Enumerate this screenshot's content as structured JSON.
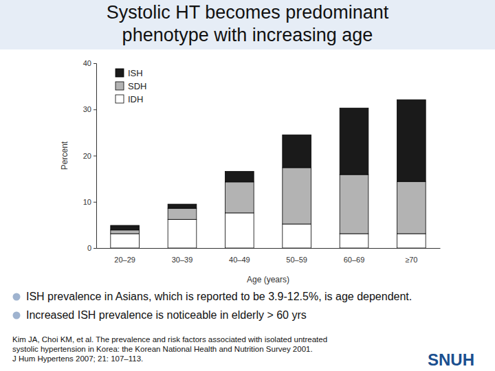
{
  "chart_data": {
    "type": "bar",
    "title": "Systolic HT becomes predominant phenotype with increasing age",
    "x_label": "Age (years)",
    "y_label": "Percent",
    "categories": [
      "20–29",
      "30–39",
      "40–49",
      "50–59",
      "60–69",
      "≥70"
    ],
    "series": [
      {
        "name": "IDH",
        "color": "#ffffff",
        "values": [
          3.1,
          6.2,
          7.6,
          5.2,
          3.1,
          3.1
        ]
      },
      {
        "name": "SDH",
        "color": "#b3b3b3",
        "values": [
          0.8,
          2.4,
          6.7,
          12.2,
          12.8,
          11.3
        ]
      },
      {
        "name": "ISH",
        "color": "#1a1a1a",
        "values": [
          1.0,
          0.9,
          2.3,
          7.1,
          14.4,
          17.7
        ]
      }
    ],
    "stacked": true,
    "legend": "top-left",
    "grid": false,
    "ylim": [
      0,
      40
    ],
    "yticks": [
      0,
      10,
      20,
      30,
      40
    ]
  },
  "slide": {
    "bullets": [
      "ISH prevalence in Asians, which is reported to be 3.9-12.5%, is age dependent.",
      "Increased ISH prevalence is noticeable in elderly > 60 yrs"
    ],
    "citation": [
      "Kim JA, Choi KM, et al. The prevalence and risk factors associated with isolated untreated",
      "systolic hypertension in Korea: the Korean National Health and Nutrition Survey 2001.",
      "J Hum Hypertens 2007; 21: 107–113."
    ],
    "logo": "SNUH"
  }
}
